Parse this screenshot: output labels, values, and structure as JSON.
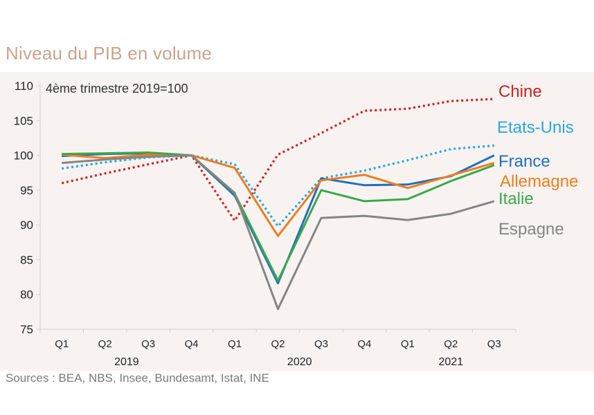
{
  "title": "Niveau du PIB en volume",
  "source": "Sources : BEA, NBS, Insee, Bundesamt, Istat, INE",
  "colors": {
    "chine": "#cc2222",
    "etats_unis": "#2aa7dc",
    "france": "#1f6fbf",
    "allemagne": "#ef7d1f",
    "italie": "#3aa84a",
    "espagne": "#858585"
  },
  "chart_data": {
    "type": "line",
    "annotation": "4ème trimestre 2019=100",
    "categories": [
      "Q1",
      "Q2",
      "Q3",
      "Q4",
      "Q1",
      "Q2",
      "Q3",
      "Q4",
      "Q1",
      "Q2",
      "Q3"
    ],
    "years": [
      {
        "label": "2019",
        "from": 0,
        "to": 3
      },
      {
        "label": "2020",
        "from": 4,
        "to": 7
      },
      {
        "label": "2021",
        "from": 8,
        "to": 10
      }
    ],
    "ylim": [
      75,
      110
    ],
    "yticks": [
      75,
      80,
      85,
      90,
      95,
      100,
      105,
      110
    ],
    "series": [
      {
        "key": "chine",
        "name": "Chine",
        "style": "dotted",
        "values": [
          96.0,
          97.4,
          98.7,
          100.0,
          90.6,
          100.1,
          103.2,
          106.4,
          106.7,
          107.8,
          108.1
        ]
      },
      {
        "key": "etats_unis",
        "name": "Etats-Unis",
        "style": "dotted",
        "values": [
          98.1,
          99.0,
          99.7,
          100.0,
          98.7,
          89.8,
          96.7,
          97.8,
          99.3,
          100.9,
          101.4
        ]
      },
      {
        "key": "france",
        "name": "France",
        "style": "solid",
        "values": [
          99.9,
          100.2,
          100.3,
          100.0,
          94.2,
          81.6,
          96.7,
          95.7,
          95.8,
          97.0,
          100.0
        ]
      },
      {
        "key": "allemagne",
        "name": "Allemagne",
        "style": "solid",
        "values": [
          100.1,
          99.6,
          100.1,
          100.0,
          98.2,
          88.4,
          96.4,
          97.2,
          95.3,
          97.1,
          98.9
        ]
      },
      {
        "key": "italie",
        "name": "Italie",
        "style": "solid",
        "values": [
          100.2,
          100.3,
          100.4,
          100.0,
          94.5,
          82.0,
          95.0,
          93.4,
          93.7,
          96.3,
          98.6
        ]
      },
      {
        "key": "espagne",
        "name": "Espagne",
        "style": "solid",
        "values": [
          98.9,
          99.4,
          99.8,
          100.0,
          94.6,
          77.9,
          91.0,
          91.3,
          90.7,
          91.6,
          93.4
        ]
      }
    ]
  }
}
